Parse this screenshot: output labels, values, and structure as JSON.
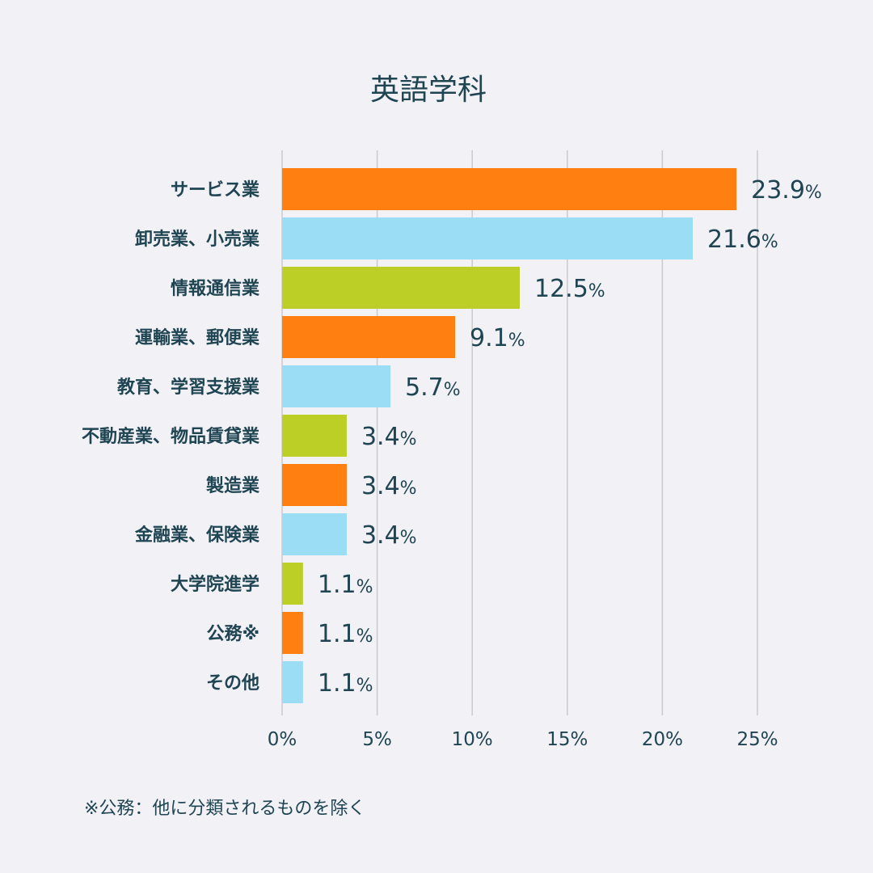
{
  "chart_data": {
    "type": "bar",
    "orientation": "horizontal",
    "title": "英語学科",
    "categories": [
      "サービス業",
      "卸売業、小売業",
      "情報通信業",
      "運輸業、郵便業",
      "教育、学習支援業",
      "不動産業、物品賃貸業",
      "製造業",
      "金融業、保険業",
      "大学院進学",
      "公務※",
      "その他"
    ],
    "values": [
      23.9,
      21.6,
      12.5,
      9.1,
      5.7,
      3.4,
      3.4,
      3.4,
      1.1,
      1.1,
      1.1
    ],
    "value_labels": [
      "23.9",
      "21.6",
      "12.5",
      "9.1",
      "5.7",
      "3.4",
      "3.4",
      "3.4",
      "1.1",
      "1.1",
      "1.1"
    ],
    "value_suffix": "%",
    "bar_colors": [
      "#ff7f10",
      "#9bddf5",
      "#bccf26",
      "#ff7f10",
      "#9bddf5",
      "#bccf26",
      "#ff7f10",
      "#9bddf5",
      "#bccf26",
      "#ff7f10",
      "#9bddf5"
    ],
    "xlim": [
      0,
      25
    ],
    "x_ticks": [
      0,
      5,
      10,
      15,
      20,
      25
    ],
    "x_tick_labels": [
      "0%",
      "5%",
      "10%",
      "15%",
      "20%",
      "25%"
    ],
    "grid": true,
    "xlabel": "",
    "ylabel": ""
  },
  "footnote": "※公務：他に分類されるものを除く"
}
